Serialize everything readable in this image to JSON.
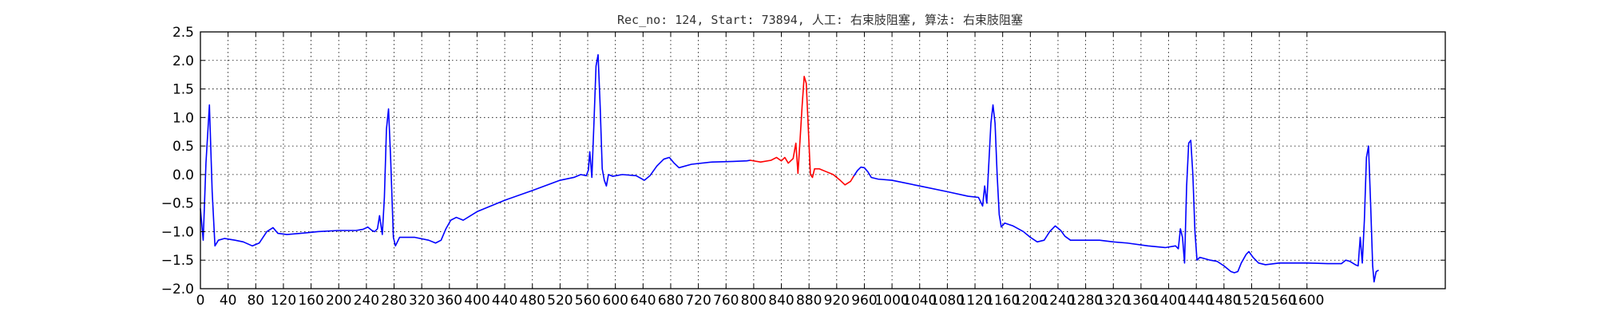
{
  "chart_data": {
    "type": "line",
    "title": "Rec_no: 124, Start: 73894, 人工: 右束肢阻塞, 算法: 右束肢阻塞",
    "xlabel": "",
    "ylabel": "",
    "xlim": [
      0,
      1800
    ],
    "ylim": [
      -2.0,
      2.5
    ],
    "grid": true,
    "grid_style": "dotted",
    "yticks": [
      -2.0,
      -1.5,
      -1.0,
      -0.5,
      0.0,
      0.5,
      1.0,
      1.5,
      2.0,
      2.5
    ],
    "ytick_labels": [
      "−2.0",
      "−1.5",
      "−1.0",
      "−0.5",
      "0.0",
      "0.5",
      "1.0",
      "1.5",
      "2.0",
      "2.5"
    ],
    "xtick_step": 40,
    "xtick_max": 1600,
    "colors": {
      "normal": "#0000ff",
      "highlight": "#ff0000"
    },
    "series": [
      {
        "color": "#0000ff",
        "points": [
          [
            0,
            -0.6
          ],
          [
            4,
            -1.15
          ],
          [
            8,
            0.2
          ],
          [
            13,
            1.22
          ],
          [
            17,
            -0.3
          ],
          [
            21,
            -1.25
          ],
          [
            26,
            -1.15
          ],
          [
            35,
            -1.12
          ],
          [
            50,
            -1.15
          ],
          [
            62,
            -1.18
          ],
          [
            75,
            -1.25
          ],
          [
            85,
            -1.2
          ],
          [
            96,
            -1.0
          ],
          [
            105,
            -0.93
          ],
          [
            112,
            -1.03
          ],
          [
            125,
            -1.05
          ],
          [
            145,
            -1.03
          ],
          [
            170,
            -1.0
          ],
          [
            200,
            -0.98
          ],
          [
            225,
            -0.98
          ],
          [
            235,
            -0.96
          ],
          [
            242,
            -0.92
          ],
          [
            248,
            -0.98
          ],
          [
            252,
            -1.0
          ],
          [
            256,
            -0.95
          ],
          [
            259,
            -0.72
          ],
          [
            263,
            -1.05
          ],
          [
            266,
            -0.4
          ],
          [
            269,
            0.8
          ],
          [
            272,
            1.15
          ],
          [
            275,
            0.3
          ],
          [
            279,
            -1.1
          ],
          [
            282,
            -1.25
          ],
          [
            288,
            -1.1
          ],
          [
            310,
            -1.1
          ],
          [
            330,
            -1.15
          ],
          [
            340,
            -1.2
          ],
          [
            348,
            -1.15
          ],
          [
            355,
            -0.95
          ],
          [
            362,
            -0.8
          ],
          [
            370,
            -0.75
          ],
          [
            380,
            -0.8
          ],
          [
            400,
            -0.65
          ],
          [
            440,
            -0.45
          ],
          [
            480,
            -0.28
          ],
          [
            520,
            -0.1
          ],
          [
            540,
            -0.05
          ],
          [
            550,
            0.0
          ],
          [
            558,
            -0.02
          ],
          [
            561,
            0.08
          ],
          [
            563,
            0.4
          ],
          [
            566,
            -0.05
          ],
          [
            569,
            0.9
          ],
          [
            572,
            1.9
          ],
          [
            575,
            2.1
          ],
          [
            578,
            1.2
          ],
          [
            581,
            0.1
          ],
          [
            584,
            -0.1
          ],
          [
            587,
            -0.2
          ],
          [
            590,
            0.0
          ],
          [
            596,
            -0.03
          ],
          [
            610,
            0.0
          ],
          [
            630,
            -0.02
          ],
          [
            642,
            -0.1
          ],
          [
            650,
            -0.02
          ],
          [
            660,
            0.15
          ],
          [
            670,
            0.27
          ],
          [
            678,
            0.3
          ],
          [
            685,
            0.2
          ],
          [
            692,
            0.12
          ],
          [
            710,
            0.18
          ],
          [
            740,
            0.22
          ],
          [
            770,
            0.23
          ],
          [
            790,
            0.24
          ],
          [
            795,
            0.25
          ]
        ]
      },
      {
        "color": "#ff0000",
        "points": [
          [
            795,
            0.25
          ],
          [
            810,
            0.22
          ],
          [
            825,
            0.25
          ],
          [
            833,
            0.3
          ],
          [
            840,
            0.24
          ],
          [
            845,
            0.3
          ],
          [
            850,
            0.2
          ],
          [
            857,
            0.28
          ],
          [
            861,
            0.55
          ],
          [
            864,
            0.02
          ],
          [
            867,
            0.6
          ],
          [
            870,
            1.2
          ],
          [
            873,
            1.72
          ],
          [
            876,
            1.6
          ],
          [
            879,
            0.8
          ],
          [
            882,
            0.0
          ],
          [
            885,
            -0.05
          ],
          [
            888,
            0.1
          ],
          [
            895,
            0.1
          ],
          [
            905,
            0.05
          ],
          [
            915,
            0.0
          ],
          [
            925,
            -0.1
          ],
          [
            932,
            -0.18
          ],
          [
            940,
            -0.12
          ],
          [
            945,
            -0.02
          ]
        ]
      },
      {
        "color": "#0000ff",
        "points": [
          [
            945,
            -0.02
          ],
          [
            950,
            0.07
          ],
          [
            955,
            0.13
          ],
          [
            960,
            0.12
          ],
          [
            965,
            0.05
          ],
          [
            970,
            -0.05
          ],
          [
            980,
            -0.08
          ],
          [
            1000,
            -0.1
          ],
          [
            1040,
            -0.2
          ],
          [
            1080,
            -0.3
          ],
          [
            1110,
            -0.38
          ],
          [
            1125,
            -0.4
          ],
          [
            1131,
            -0.55
          ],
          [
            1134,
            -0.2
          ],
          [
            1137,
            -0.5
          ],
          [
            1140,
            0.2
          ],
          [
            1143,
            0.9
          ],
          [
            1146,
            1.22
          ],
          [
            1149,
            0.9
          ],
          [
            1152,
            0.0
          ],
          [
            1155,
            -0.7
          ],
          [
            1158,
            -0.92
          ],
          [
            1163,
            -0.85
          ],
          [
            1175,
            -0.9
          ],
          [
            1190,
            -1.0
          ],
          [
            1200,
            -1.1
          ],
          [
            1210,
            -1.18
          ],
          [
            1220,
            -1.15
          ],
          [
            1228,
            -1.0
          ],
          [
            1236,
            -0.9
          ],
          [
            1244,
            -0.98
          ],
          [
            1250,
            -1.08
          ],
          [
            1258,
            -1.15
          ],
          [
            1280,
            -1.15
          ],
          [
            1300,
            -1.15
          ],
          [
            1320,
            -1.18
          ],
          [
            1340,
            -1.2
          ],
          [
            1370,
            -1.25
          ],
          [
            1395,
            -1.28
          ],
          [
            1410,
            -1.25
          ],
          [
            1414,
            -1.3
          ],
          [
            1417,
            -0.95
          ],
          [
            1420,
            -1.1
          ],
          [
            1423,
            -1.55
          ],
          [
            1426,
            -0.2
          ],
          [
            1429,
            0.55
          ],
          [
            1432,
            0.6
          ],
          [
            1435,
            0.0
          ],
          [
            1438,
            -1.0
          ],
          [
            1441,
            -1.5
          ],
          [
            1445,
            -1.45
          ],
          [
            1460,
            -1.5
          ],
          [
            1470,
            -1.52
          ],
          [
            1480,
            -1.6
          ],
          [
            1490,
            -1.7
          ],
          [
            1495,
            -1.72
          ],
          [
            1500,
            -1.7
          ],
          [
            1505,
            -1.55
          ],
          [
            1512,
            -1.4
          ],
          [
            1516,
            -1.35
          ],
          [
            1522,
            -1.45
          ],
          [
            1530,
            -1.55
          ],
          [
            1540,
            -1.58
          ],
          [
            1560,
            -1.55
          ],
          [
            1600,
            -1.55
          ],
          [
            1630,
            -1.56
          ],
          [
            1650,
            -1.56
          ],
          [
            1656,
            -1.5
          ],
          [
            1662,
            -1.52
          ],
          [
            1670,
            -1.58
          ],
          [
            1674,
            -1.6
          ],
          [
            1677,
            -1.1
          ],
          [
            1680,
            -1.55
          ],
          [
            1683,
            -0.8
          ],
          [
            1686,
            0.3
          ],
          [
            1689,
            0.5
          ],
          [
            1692,
            -0.5
          ],
          [
            1695,
            -1.6
          ],
          [
            1697,
            -1.88
          ],
          [
            1700,
            -1.7
          ],
          [
            1703,
            -1.68
          ]
        ]
      }
    ]
  }
}
